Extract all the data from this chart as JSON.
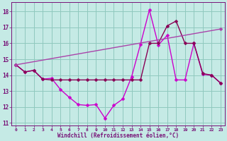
{
  "background_color": "#c5eae5",
  "grid_color": "#90c8be",
  "spine_color": "#771177",
  "tick_color": "#771177",
  "xlabel": "Windchill (Refroidissement éolien,°C)",
  "lines": [
    {
      "x": [
        0,
        1,
        2,
        3,
        4,
        5,
        6,
        7,
        8,
        9,
        10,
        11,
        12,
        13,
        14,
        15,
        16,
        17,
        18,
        19,
        20,
        21,
        22,
        23
      ],
      "y": [
        14.65,
        14.2,
        14.3,
        13.75,
        13.8,
        13.1,
        12.6,
        12.15,
        12.1,
        12.15,
        11.3,
        12.1,
        12.5,
        13.9,
        15.95,
        18.1,
        15.9,
        16.5,
        13.7,
        13.7,
        16.0,
        14.05,
        14.0,
        13.5
      ],
      "color": "#cc00cc",
      "lw": 1.0,
      "marker": "D",
      "ms": 2.5
    },
    {
      "x": [
        0,
        1,
        2,
        3,
        4,
        5,
        6,
        7,
        8,
        9,
        10,
        11,
        12,
        13,
        14,
        15,
        16,
        17,
        18,
        19,
        20,
        21,
        22,
        23
      ],
      "y": [
        14.65,
        14.2,
        14.3,
        13.75,
        13.7,
        13.7,
        13.7,
        13.7,
        13.7,
        13.7,
        13.7,
        13.7,
        13.7,
        13.7,
        13.7,
        16.0,
        16.0,
        17.1,
        17.4,
        16.0,
        16.0,
        14.1,
        14.0,
        13.5
      ],
      "color": "#880055",
      "lw": 1.0,
      "marker": "D",
      "ms": 2.5
    },
    {
      "x": [
        0,
        23
      ],
      "y": [
        14.65,
        16.9
      ],
      "color": "#aa44aa",
      "lw": 1.0,
      "marker": "D",
      "ms": 2.5
    }
  ],
  "xlim": [
    -0.5,
    23.5
  ],
  "ylim": [
    10.85,
    18.6
  ],
  "yticks": [
    11,
    12,
    13,
    14,
    15,
    16,
    17,
    18
  ],
  "xticks": [
    0,
    1,
    2,
    3,
    4,
    5,
    6,
    7,
    8,
    9,
    10,
    11,
    12,
    13,
    14,
    15,
    16,
    17,
    18,
    19,
    20,
    21,
    22,
    23
  ],
  "xtick_fontsize": 4.5,
  "ytick_fontsize": 5.5,
  "xlabel_fontsize": 5.5
}
